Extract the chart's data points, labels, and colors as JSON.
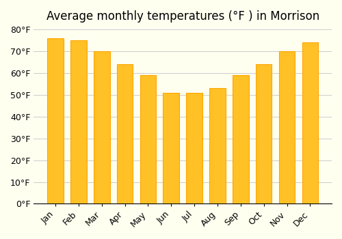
{
  "title": "Average monthly temperatures (°F ) in Morrison",
  "months": [
    "Jan",
    "Feb",
    "Mar",
    "Apr",
    "May",
    "Jun",
    "Jul",
    "Aug",
    "Sep",
    "Oct",
    "Nov",
    "Dec"
  ],
  "values": [
    76,
    75,
    70,
    64,
    59,
    51,
    51,
    53,
    59,
    64,
    70,
    74
  ],
  "bar_color_face": "#FFC125",
  "bar_color_edge": "#FFA500",
  "background_color": "#FFFFF0",
  "grid_color": "#CCCCCC",
  "ylim": [
    0,
    80
  ],
  "yticks": [
    0,
    10,
    20,
    30,
    40,
    50,
    60,
    70,
    80
  ],
  "title_fontsize": 12,
  "tick_fontsize": 9,
  "bar_width": 0.7
}
